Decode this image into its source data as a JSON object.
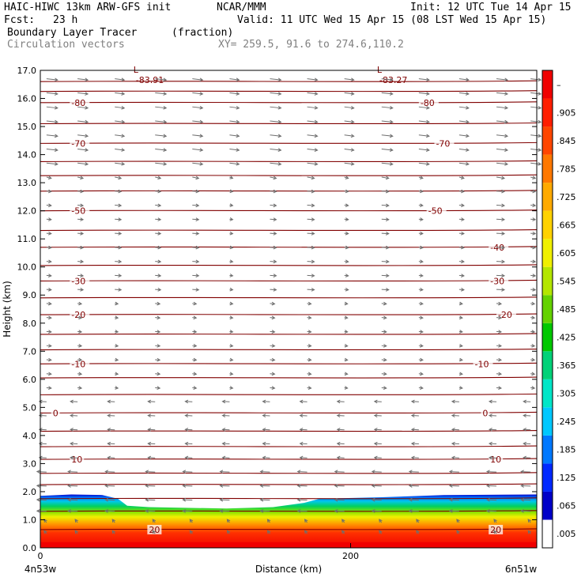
{
  "header": {
    "model": "HAIC-HIWC 13km ARW-GFS init",
    "org": "NCAR/MMM",
    "init": "Init: 12 UTC Tue 14 Apr 15",
    "fcst_label": "Fcst:",
    "fcst_value": "23 h",
    "valid": "Valid: 11 UTC Wed 15 Apr 15 (08 LST Wed 15 Apr 15)",
    "field": "Boundary Layer Tracer",
    "field_units": "(fraction)",
    "overlay": "Circulation vectors",
    "xy": "XY= 259.5, 91.6 to 274.6,110.2"
  },
  "chart_data": {
    "type": "cross-section",
    "ylabel": "Height (km)",
    "xlabel": "Distance (km)",
    "x_left_label": "4n53w",
    "x_right_label": "6n51w",
    "x_tick_labels": [
      "0",
      "200"
    ],
    "x_ticks": [
      0,
      200
    ],
    "xlim": [
      0,
      320
    ],
    "ylim": [
      0,
      17
    ],
    "y_ticks": [
      0,
      1,
      2,
      3,
      4,
      5,
      6,
      7,
      8,
      9,
      10,
      11,
      12,
      13,
      14,
      15,
      16,
      17
    ],
    "y_tick_labels": [
      "0.0",
      "1.0",
      "2.0",
      "3.0",
      "4.0",
      "5.0",
      "6.0",
      "7.0",
      "8.0",
      "9.0",
      "10.0",
      "11.0",
      "12.0",
      "13.0",
      "14.0",
      "15.0",
      "16.0",
      "17.0"
    ],
    "tracer_top_km": [
      [
        0,
        1.85
      ],
      [
        20,
        1.9
      ],
      [
        40,
        1.88
      ],
      [
        50,
        1.75
      ],
      [
        56,
        1.5
      ],
      [
        70,
        1.45
      ],
      [
        120,
        1.4
      ],
      [
        150,
        1.45
      ],
      [
        170,
        1.6
      ],
      [
        180,
        1.75
      ],
      [
        220,
        1.8
      ],
      [
        260,
        1.88
      ],
      [
        320,
        1.9
      ]
    ],
    "colorbar": {
      "labels": [
        ".005",
        ".065",
        ".125",
        ".185",
        ".245",
        ".305",
        ".365",
        ".425",
        ".485",
        ".545",
        ".605",
        ".665",
        ".725",
        ".785",
        ".845",
        ".905",
        "–"
      ],
      "colors": [
        "#ffffff",
        "#0000c8",
        "#0028ff",
        "#0078ff",
        "#00c8ff",
        "#00e6c8",
        "#00d278",
        "#00c800",
        "#64d200",
        "#b4e600",
        "#f0f000",
        "#ffd200",
        "#ffaa00",
        "#ff7800",
        "#ff4600",
        "#ff1e00",
        "#f00000"
      ]
    },
    "contours": [
      {
        "value": "-80",
        "height": 15.85,
        "labels": [
          {
            "x": 20,
            "text": "-80"
          },
          {
            "x": 245,
            "text": "-80"
          }
        ]
      },
      {
        "value": "-70",
        "height": 14.4,
        "labels": [
          {
            "x": 20,
            "text": "-70"
          },
          {
            "x": 255,
            "text": "-70"
          }
        ]
      },
      {
        "value": "-50",
        "height": 12.0,
        "labels": [
          {
            "x": 20,
            "text": "-50"
          },
          {
            "x": 250,
            "text": "-50"
          }
        ]
      },
      {
        "value": "-40",
        "height": 10.7,
        "labels": [
          {
            "x": 290,
            "text": "-40"
          }
        ]
      },
      {
        "value": "-30",
        "height": 9.5,
        "labels": [
          {
            "x": 20,
            "text": "-30"
          },
          {
            "x": 290,
            "text": "-30"
          }
        ]
      },
      {
        "value": "-20",
        "height": 8.3,
        "labels": [
          {
            "x": 20,
            "text": "-20"
          },
          {
            "x": 295,
            "text": "-20"
          }
        ]
      },
      {
        "value": "-10",
        "height": 6.55,
        "labels": [
          {
            "x": 20,
            "text": "-10"
          },
          {
            "x": 280,
            "text": "-10"
          }
        ]
      },
      {
        "value": "0",
        "height": 4.8,
        "labels": [
          {
            "x": 8,
            "text": "0"
          },
          {
            "x": 285,
            "text": "0"
          }
        ]
      },
      {
        "value": "10",
        "height": 3.15,
        "labels": [
          {
            "x": 20,
            "text": "10"
          },
          {
            "x": 290,
            "text": "10"
          }
        ]
      },
      {
        "value": "20",
        "height": 0.65,
        "labels": [
          {
            "x": 70,
            "text": "20"
          },
          {
            "x": 290,
            "text": "20"
          }
        ]
      }
    ],
    "contour_lines_km": [
      16.6,
      16.25,
      15.85,
      15.1,
      14.4,
      13.75,
      13.25,
      12.7,
      12.0,
      11.3,
      10.7,
      10.05,
      9.5,
      8.9,
      8.3,
      7.6,
      7.05,
      6.55,
      6.05,
      5.45,
      4.8,
      4.15,
      3.6,
      3.15,
      2.65,
      2.25,
      1.75,
      1.3,
      0.65
    ],
    "lows": [
      {
        "x": 60,
        "y": 16.8,
        "mark": "L",
        "value": "-83.91"
      },
      {
        "x": 217,
        "y": 16.8,
        "mark": "L",
        "value": "-83.27"
      }
    ],
    "vector_rows_km": [
      16.7,
      16.2,
      15.7,
      15.2,
      14.7,
      14.2,
      13.7,
      13.2,
      12.7,
      12.2,
      11.7,
      11.2,
      10.7,
      10.2,
      9.7,
      9.2,
      8.7,
      8.2,
      7.7,
      7.2,
      6.7,
      6.2,
      5.7,
      5.2,
      4.7,
      4.2,
      3.7,
      3.2,
      2.7,
      2.2,
      1.7,
      1.3,
      0.9,
      0.5
    ],
    "vector_x_km": [
      4,
      24,
      48,
      74,
      98,
      122,
      148,
      172,
      196,
      220,
      244,
      270,
      294,
      316
    ]
  }
}
